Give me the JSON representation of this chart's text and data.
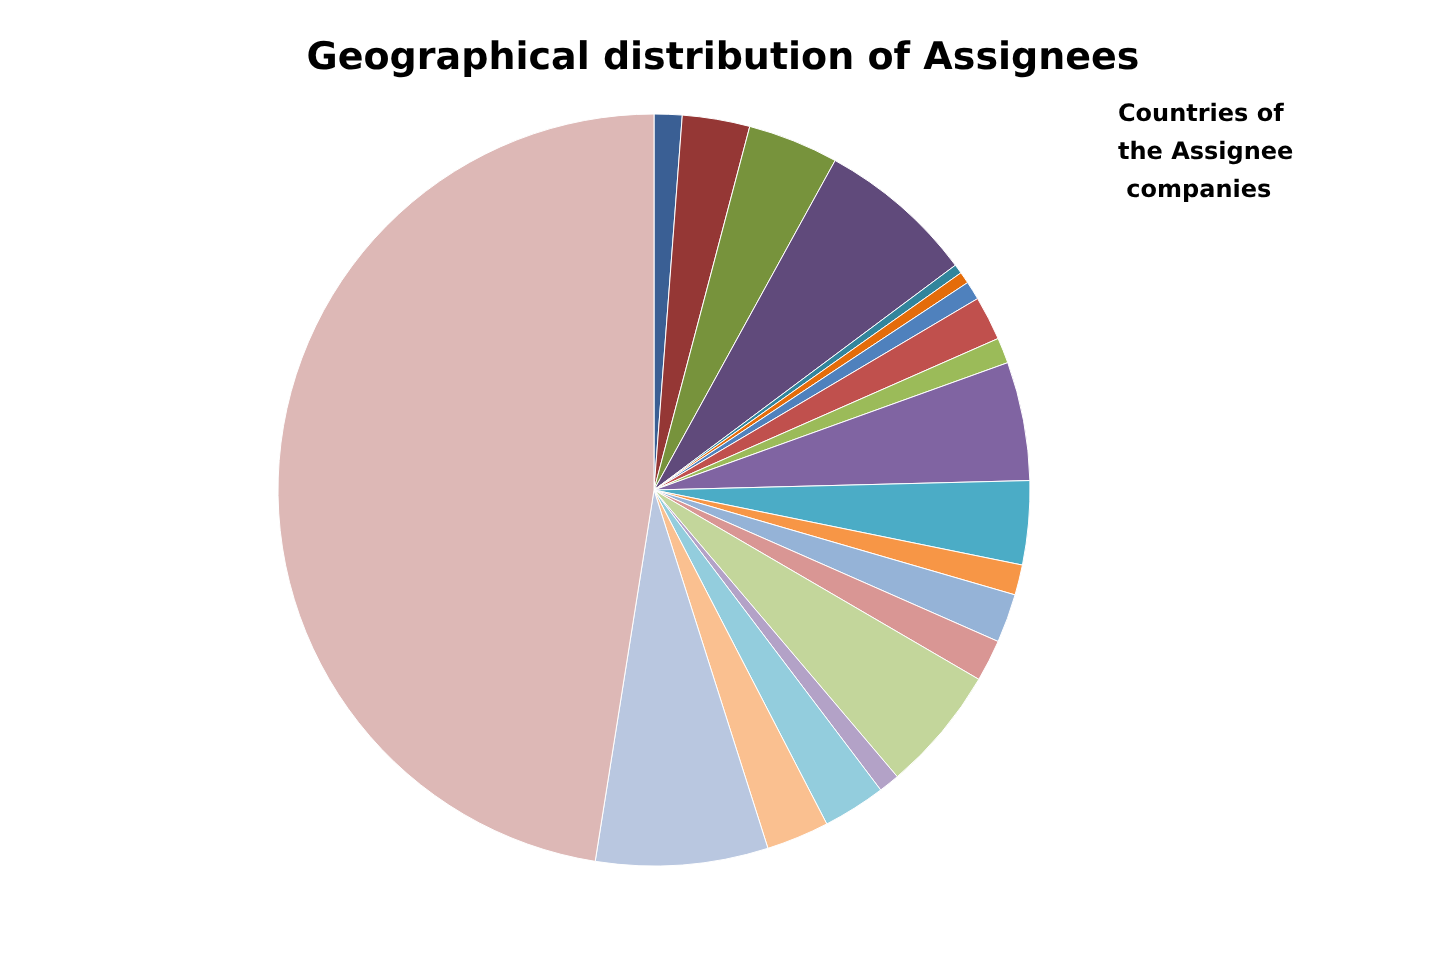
{
  "chart_data": {
    "type": "pie",
    "title": "Geographical distribution of Assignees",
    "legend_title": "Countries of the Assignee companies",
    "categories": [
      null,
      null,
      null,
      null,
      null,
      null,
      null,
      null,
      null,
      null,
      null,
      null,
      null,
      null,
      null,
      null,
      null,
      null,
      null,
      null
    ],
    "values": [
      1.2,
      2.9,
      3.9,
      6.8,
      0.4,
      0.5,
      0.8,
      1.9,
      1.1,
      5.1,
      3.6,
      1.3,
      2.1,
      1.8,
      5.4,
      0.9,
      2.7,
      2.7,
      7.4,
      47.5
    ],
    "colors": [
      "#3a5f94",
      "#953735",
      "#77933c",
      "#604a7b",
      "#31859c",
      "#e46c0a",
      "#4f81bd",
      "#c0504d",
      "#9bbb59",
      "#8064a2",
      "#4bacc6",
      "#f79646",
      "#95b3d7",
      "#d99694",
      "#c3d69b",
      "#b3a2c7",
      "#93cddd",
      "#fac090",
      "#b9c7e0",
      "#ddb8b6"
    ]
  }
}
